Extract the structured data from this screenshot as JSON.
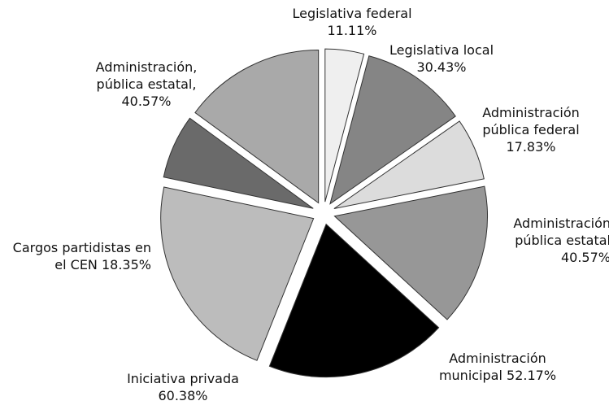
{
  "chart_data": {
    "type": "pie",
    "categories": [
      "Legislativa federal",
      "Legislativa local",
      "Administración pública federal",
      "Administración pública estatal",
      "Administración municipal",
      "Iniciativa privada",
      "Cargos partidistas en el CEN",
      "Administración, pública estatal,"
    ],
    "values": [
      11.11,
      30.43,
      17.83,
      40.57,
      52.17,
      60.38,
      18.35,
      40.57
    ],
    "value_labels": [
      "11.11%",
      "30.43%",
      "17.83%",
      "40.57%",
      "52.17%",
      "60.38%",
      "18.35%",
      "40.57%"
    ],
    "colors": [
      "#efefef",
      "#858585",
      "#dcdcdc",
      "#979797",
      "#000000",
      "#bcbcbc",
      "#6a6a6a",
      "#a9a9a9"
    ]
  }
}
